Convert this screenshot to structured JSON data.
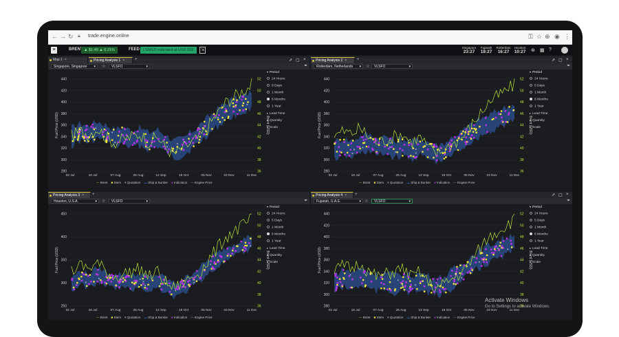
{
  "browser": {
    "url": "trade.engine.online"
  },
  "appbar": {
    "brent_label": "BRENT",
    "brent_value": "▲ $1.40 ▲ 0.21%",
    "feed_label": "FEED",
    "feed_value": "LSMGO indicated at USD 559",
    "clocks": [
      {
        "city": "Singapore",
        "time": "23:27"
      },
      {
        "city": "Fujairah",
        "time": "19:27"
      },
      {
        "city": "Rotterdam",
        "time": "16:27"
      },
      {
        "city": "Houston",
        "time": "10:27"
      }
    ]
  },
  "panels": [
    {
      "tabs": [
        {
          "label": "Map 1",
          "active": false
        },
        {
          "label": "Pricing Analysis 1",
          "active": true
        }
      ],
      "location": "Singapore, Singapore",
      "product": "VLSFO",
      "chart": {
        "left": [
          280,
          300,
          320,
          340,
          360,
          380,
          400,
          420,
          440
        ],
        "right": [
          36,
          38,
          40,
          42,
          44,
          46,
          48,
          50,
          52
        ]
      }
    },
    {
      "tabs": [
        {
          "label": "Pricing Analysis 2",
          "active": true
        }
      ],
      "location": "Rotterdam, Netherlands",
      "product": "VLSFO",
      "chart": {
        "left": [
          280,
          300,
          320,
          340,
          360,
          380,
          400,
          420,
          440
        ],
        "right": [
          36,
          38,
          40,
          42,
          44,
          46,
          48,
          50,
          52
        ]
      }
    },
    {
      "tabs": [
        {
          "label": "Pricing Analysis 3",
          "active": true
        }
      ],
      "location": "Houston, U.S.A.",
      "product": "VLSFO",
      "chart": {
        "left": [
          250,
          300,
          350,
          400,
          450
        ],
        "right": [
          36,
          38,
          40,
          42,
          44,
          46,
          48,
          50,
          52
        ]
      }
    },
    {
      "tabs": [
        {
          "label": "Pricing Analysis 4",
          "active": true
        }
      ],
      "location": "Fujairah, U.A.E.",
      "product": "VLSFO",
      "chart": {
        "left": [
          280,
          300,
          320,
          340,
          360,
          380,
          400,
          420,
          440
        ],
        "right": [
          36,
          38,
          40,
          42,
          44,
          46,
          48,
          50,
          52
        ]
      }
    }
  ],
  "chart_common": {
    "ylabel": "Fuel Price (USD)",
    "y2label": "Brent (USD)",
    "x_ticks": [
      "02 Jul",
      "16 Jul",
      "07 Aug",
      "25 Aug",
      "12 Sep",
      "18 Oct",
      "05 Nov",
      "23 Nov",
      "11 Dec"
    ],
    "legend": [
      "Brent",
      "Stem",
      "Quotation",
      "Ship & Bunker",
      "Indication",
      "Engine Price"
    ]
  },
  "controls": {
    "period_label": "Period",
    "periods": [
      "24 Hours",
      "5 Days",
      "1 Month",
      "6 Months",
      "1 Year"
    ],
    "selected_period": "6 Months",
    "lead_time_label": "Lead Time",
    "quantity_label": "Quantity",
    "scale_label": "Scale"
  },
  "colors": {
    "brent": "#b9e73a",
    "stem": "#f2e53c",
    "indication": "#b832e8",
    "band": "#2a4a86",
    "quotation": "#ffffff"
  },
  "watermark": {
    "title": "Activate Windows",
    "subtitle": "Go to Settings to activate Windows."
  },
  "chart_data": [
    {
      "type": "scatter",
      "location": "Singapore, Singapore",
      "x_ticks": [
        "02 Jul",
        "16 Jul",
        "07 Aug",
        "25 Aug",
        "12 Sep",
        "18 Oct",
        "05 Nov",
        "23 Nov",
        "11 Dec"
      ],
      "ylim": [
        280,
        440
      ],
      "y2lim": [
        36,
        52
      ],
      "ylabel": "Fuel Price (USD)",
      "y2label": "Brent (USD)",
      "series": [
        {
          "name": "Brent",
          "values": [
            42,
            43,
            42.5,
            43.5,
            42,
            41,
            41.5,
            42,
            42.5,
            41,
            42,
            40,
            39,
            40,
            41,
            42,
            44,
            46,
            48,
            49,
            50,
            51
          ]
        },
        {
          "name": "Indication",
          "values": [
            340,
            348,
            344,
            352,
            346,
            338,
            342,
            336,
            340,
            332,
            338,
            328,
            318,
            322,
            334,
            346,
            360,
            372,
            384,
            392,
            396,
            404
          ]
        }
      ]
    },
    {
      "type": "scatter",
      "location": "Rotterdam, Netherlands",
      "x_ticks": [
        "02 Jul",
        "16 Jul",
        "07 Aug",
        "25 Aug",
        "12 Sep",
        "18 Oct",
        "05 Nov",
        "23 Nov",
        "11 Dec"
      ],
      "ylim": [
        280,
        440
      ],
      "y2lim": [
        36,
        52
      ],
      "ylabel": "Fuel Price (USD)",
      "y2label": "Brent (USD)",
      "series": [
        {
          "name": "Brent",
          "values": [
            42,
            43,
            42.5,
            43.5,
            42,
            41,
            41.5,
            42,
            42.5,
            41,
            42,
            40,
            39,
            40,
            41,
            42,
            44,
            46,
            48,
            49,
            50,
            51
          ]
        },
        {
          "name": "Indication",
          "values": [
            316,
            322,
            318,
            326,
            330,
            322,
            326,
            318,
            322,
            316,
            322,
            316,
            310,
            316,
            326,
            336,
            346,
            356,
            362,
            370,
            376,
            382
          ]
        }
      ]
    },
    {
      "type": "scatter",
      "location": "Houston, U.S.A.",
      "x_ticks": [
        "02 Jul",
        "16 Jul",
        "07 Aug",
        "25 Aug",
        "12 Sep",
        "18 Oct",
        "05 Nov",
        "23 Nov",
        "11 Dec"
      ],
      "ylim": [
        250,
        450
      ],
      "y2lim": [
        36,
        52
      ],
      "ylabel": "Fuel Price (USD)",
      "y2label": "Brent (USD)",
      "series": [
        {
          "name": "Brent",
          "values": [
            42,
            43,
            42.5,
            43.5,
            42,
            41,
            41.5,
            42,
            42.5,
            41,
            42,
            40,
            39,
            40,
            41,
            42,
            44,
            46,
            48,
            49,
            50,
            51
          ]
        },
        {
          "name": "Indication",
          "values": [
            296,
            312,
            304,
            318,
            310,
            302,
            306,
            300,
            306,
            298,
            304,
            296,
            284,
            292,
            306,
            320,
            336,
            350,
            362,
            372,
            380,
            390
          ]
        }
      ]
    },
    {
      "type": "scatter",
      "location": "Fujairah, U.A.E.",
      "x_ticks": [
        "02 Jul",
        "16 Jul",
        "07 Aug",
        "25 Aug",
        "12 Sep",
        "18 Oct",
        "05 Nov",
        "23 Nov",
        "11 Dec"
      ],
      "ylim": [
        280,
        440
      ],
      "y2lim": [
        36,
        52
      ],
      "ylabel": "Fuel Price (USD)",
      "y2label": "Brent (USD)",
      "series": [
        {
          "name": "Brent",
          "values": [
            42,
            43,
            42.5,
            43.5,
            42,
            41,
            41.5,
            42,
            42.5,
            41,
            42,
            40,
            39,
            40,
            41,
            42,
            44,
            46,
            48,
            49,
            50,
            51
          ]
        },
        {
          "name": "Indication",
          "values": [
            320,
            328,
            324,
            330,
            326,
            320,
            324,
            318,
            322,
            318,
            322,
            318,
            312,
            318,
            330,
            340,
            352,
            362,
            370,
            378,
            384,
            392
          ]
        }
      ]
    }
  ]
}
